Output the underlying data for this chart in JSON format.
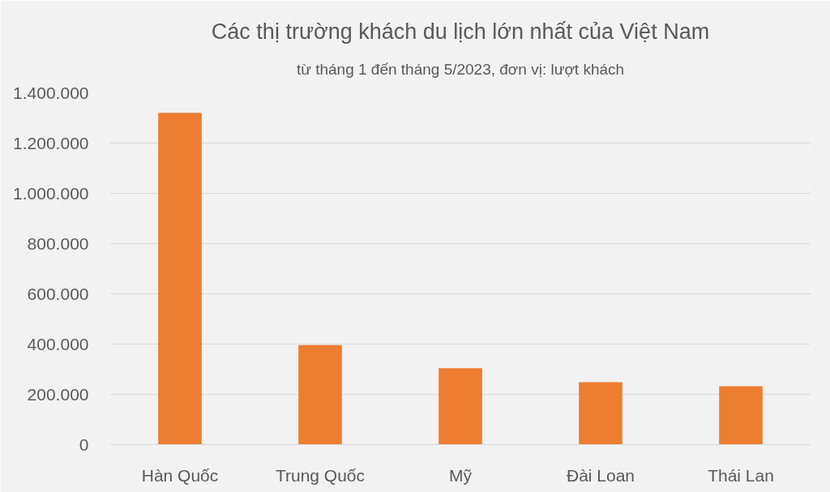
{
  "chart_data": {
    "type": "bar",
    "title": "Các thị trường khách du lịch lớn nhất của Việt Nam",
    "subtitle": "từ tháng 1 đến tháng 5/2023, đơn vị: lượt khách",
    "categories": [
      "Hàn Quốc",
      "Trung Quốc",
      "Mỹ",
      "Đài Loan",
      "Thái Lan"
    ],
    "values": [
      1320000,
      396000,
      304000,
      248000,
      232000
    ],
    "color": "#ed7d31",
    "ylim": [
      0,
      1400000
    ],
    "yticks": [
      0,
      {
        "value": 200000,
        "label": "200.000"
      },
      {
        "value": 400000,
        "label": "400.000"
      },
      {
        "value": 600000,
        "label": "600.000"
      },
      {
        "value": 800000,
        "label": "800.000"
      },
      {
        "value": 1000000,
        "label": "1.000.000"
      },
      {
        "value": 1200000,
        "label": "1.200.000"
      },
      {
        "value": 1400000,
        "label": "1.400.000"
      }
    ],
    "grid": "y"
  }
}
